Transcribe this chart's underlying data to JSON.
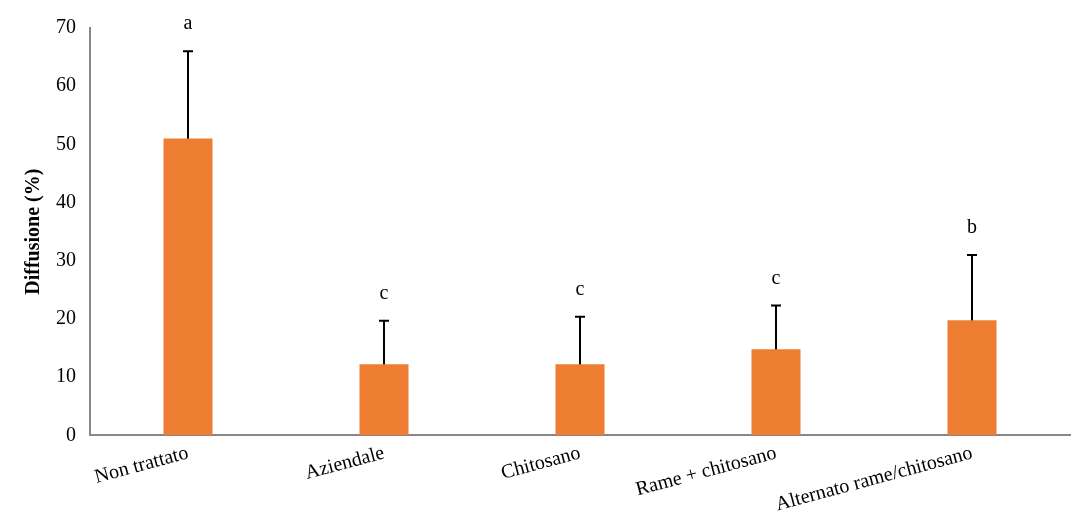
{
  "chart_data": {
    "type": "bar",
    "ylabel": "Diffusione (%)",
    "categories": [
      "Non trattato",
      "Aziendale",
      "Chitosano",
      "Rame + chitosano",
      "Alternato rame/chitosano"
    ],
    "values": [
      51,
      12.2,
      12.2,
      14.8,
      19.8
    ],
    "errors": [
      15,
      7.5,
      8.2,
      7.5,
      11.2
    ],
    "color": "#ed7d31",
    "ylim": [
      0,
      70
    ],
    "yticks": [
      0,
      10,
      20,
      30,
      40,
      50,
      60,
      70
    ],
    "grid": false,
    "legend": false,
    "annotations": [
      {
        "text": "a",
        "x": "Non trattato",
        "y": 66
      },
      {
        "text": "c",
        "x": "Aziendale",
        "y": 19.7
      },
      {
        "text": "c",
        "x": "Chitosano",
        "y": 20.4
      },
      {
        "text": "c",
        "x": "Rame + chitosano",
        "y": 22.3
      },
      {
        "text": "b",
        "x": "Alternato rame/chitosano",
        "y": 31
      }
    ]
  }
}
